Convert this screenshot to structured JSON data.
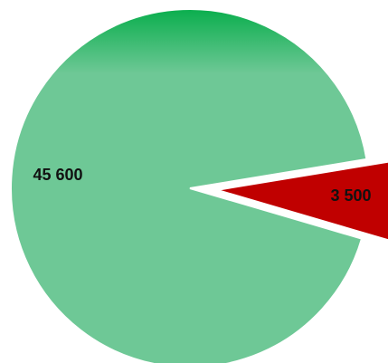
{
  "chart_data": {
    "type": "pie",
    "categories": [
      "",
      ""
    ],
    "series": [
      {
        "values": [
          45600,
          3500
        ]
      }
    ],
    "data_labels": [
      "45 600",
      "3 500"
    ],
    "slice_colors": [
      "#6ec896",
      "#c00000"
    ],
    "exploded_slice_index": 1,
    "legend": "none",
    "title": ""
  }
}
